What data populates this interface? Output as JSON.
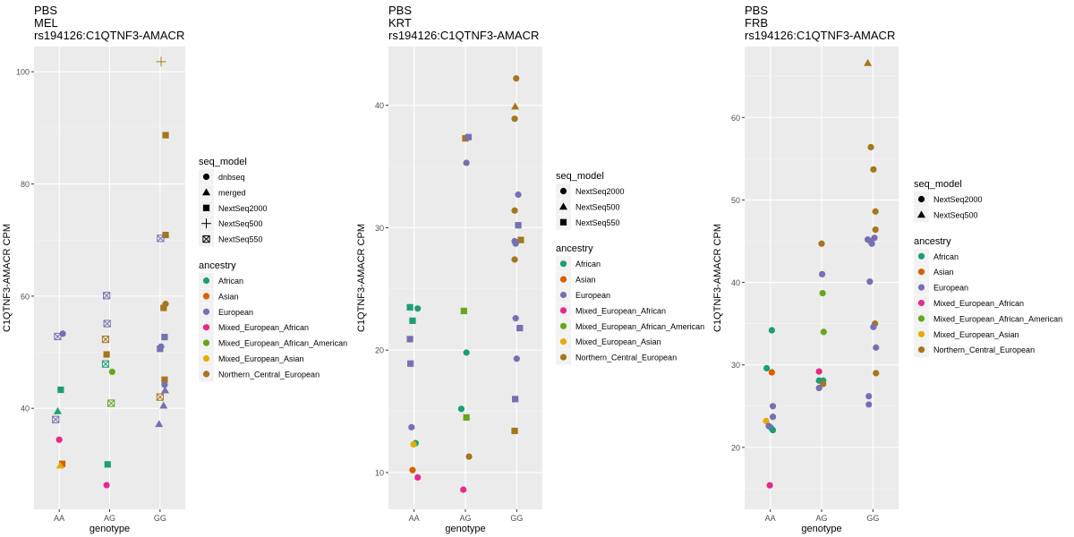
{
  "colors": {
    "African": "#1b9e77",
    "Asian": "#d95f02",
    "European": "#7570b3",
    "Mixed_European_African": "#e7298a",
    "Mixed_European_African_American": "#66a61e",
    "Mixed_European_Asian": "#e6ab02",
    "Northern_Central_European": "#a6761d",
    "panel_bg": "#ebebeb",
    "grid": "#ffffff"
  },
  "chart_data": [
    {
      "type": "scatter",
      "title": [
        "PBS",
        "MEL",
        "rs194126:C1QTNF3-AMACR"
      ],
      "xlabel": "genotype",
      "ylabel": "C1QTNF3-AMACR CPM",
      "categories": [
        "AA",
        "AG",
        "GG"
      ],
      "ylim": [
        22,
        104.5
      ],
      "yticks": [
        40,
        60,
        80,
        100
      ],
      "grid": true,
      "legend": {
        "shape_title": "seq_model",
        "shapes": [
          {
            "label": "dnbseq",
            "shape": "circle"
          },
          {
            "label": "merged",
            "shape": "triangle"
          },
          {
            "label": "NextSeq2000",
            "shape": "square"
          },
          {
            "label": "NextSeq500",
            "shape": "plus"
          },
          {
            "label": "NextSeq550",
            "shape": "boxx"
          }
        ],
        "color_title": "ancestry",
        "colors": [
          "African",
          "Asian",
          "European",
          "Mixed_European_African",
          "Mixed_European_African_American",
          "Mixed_European_Asian",
          "Northern_Central_European"
        ]
      },
      "points": [
        {
          "g": "AA",
          "j": 0.07,
          "y": 53.3,
          "a": "European",
          "s": "circle"
        },
        {
          "g": "AA",
          "j": -0.03,
          "y": 52.8,
          "a": "European",
          "s": "boxx"
        },
        {
          "g": "AA",
          "j": 0.03,
          "y": 43.3,
          "a": "African",
          "s": "square"
        },
        {
          "g": "AA",
          "j": -0.03,
          "y": 39.5,
          "a": "African",
          "s": "triangle"
        },
        {
          "g": "AA",
          "j": -0.07,
          "y": 38.0,
          "a": "European",
          "s": "boxx"
        },
        {
          "g": "AA",
          "j": 0.0,
          "y": 34.4,
          "a": "Mixed_European_African",
          "s": "circle"
        },
        {
          "g": "AA",
          "j": 0.06,
          "y": 30.1,
          "a": "Asian",
          "s": "square"
        },
        {
          "g": "AA",
          "j": 0.02,
          "y": 29.8,
          "a": "Mixed_European_Asian",
          "s": "triangle"
        },
        {
          "g": "AG",
          "j": -0.06,
          "y": 60.1,
          "a": "European",
          "s": "boxx"
        },
        {
          "g": "AG",
          "j": -0.05,
          "y": 55.1,
          "a": "European",
          "s": "boxx"
        },
        {
          "g": "AG",
          "j": -0.08,
          "y": 52.3,
          "a": "Northern_Central_European",
          "s": "boxx"
        },
        {
          "g": "AG",
          "j": -0.06,
          "y": 49.6,
          "a": "Northern_Central_European",
          "s": "square"
        },
        {
          "g": "AG",
          "j": -0.08,
          "y": 47.9,
          "a": "African",
          "s": "boxx"
        },
        {
          "g": "AG",
          "j": 0.05,
          "y": 46.5,
          "a": "Mixed_European_African_American",
          "s": "circle"
        },
        {
          "g": "AG",
          "j": 0.03,
          "y": 40.9,
          "a": "Mixed_European_African_American",
          "s": "boxx"
        },
        {
          "g": "AG",
          "j": -0.04,
          "y": 30.0,
          "a": "African",
          "s": "square"
        },
        {
          "g": "AG",
          "j": -0.06,
          "y": 26.3,
          "a": "Mixed_European_African",
          "s": "circle"
        },
        {
          "g": "GG",
          "j": 0.02,
          "y": 101.8,
          "a": "Northern_Central_European",
          "s": "plus"
        },
        {
          "g": "GG",
          "j": 0.11,
          "y": 88.7,
          "a": "Northern_Central_European",
          "s": "square"
        },
        {
          "g": "GG",
          "j": 0.11,
          "y": 70.9,
          "a": "Northern_Central_European",
          "s": "square"
        },
        {
          "g": "GG",
          "j": 0.01,
          "y": 70.3,
          "a": "European",
          "s": "boxx"
        },
        {
          "g": "GG",
          "j": 0.11,
          "y": 58.6,
          "a": "Northern_Central_European",
          "s": "circle"
        },
        {
          "g": "GG",
          "j": 0.07,
          "y": 57.9,
          "a": "Northern_Central_European",
          "s": "square"
        },
        {
          "g": "GG",
          "j": 0.09,
          "y": 52.7,
          "a": "European",
          "s": "square"
        },
        {
          "g": "GG",
          "j": 0.02,
          "y": 51.0,
          "a": "European",
          "s": "circle"
        },
        {
          "g": "GG",
          "j": 0.0,
          "y": 50.6,
          "a": "European",
          "s": "square"
        },
        {
          "g": "GG",
          "j": 0.09,
          "y": 45.1,
          "a": "Northern_Central_European",
          "s": "square"
        },
        {
          "g": "GG",
          "j": 0.09,
          "y": 44.2,
          "a": "European",
          "s": "circle"
        },
        {
          "g": "GG",
          "j": 0.1,
          "y": 43.2,
          "a": "European",
          "s": "triangle"
        },
        {
          "g": "GG",
          "j": 0.0,
          "y": 42.0,
          "a": "Northern_Central_European",
          "s": "boxx"
        },
        {
          "g": "GG",
          "j": 0.07,
          "y": 40.5,
          "a": "European",
          "s": "triangle"
        },
        {
          "g": "GG",
          "j": -0.02,
          "y": 37.2,
          "a": "European",
          "s": "triangle"
        }
      ]
    },
    {
      "type": "scatter",
      "title": [
        "PBS",
        "KRT",
        "rs194126:C1QTNF3-AMACR"
      ],
      "xlabel": "genotype",
      "ylabel": "C1QTNF3-AMACR CPM",
      "categories": [
        "AA",
        "AG",
        "GG"
      ],
      "ylim": [
        7,
        44.8
      ],
      "yticks": [
        10,
        20,
        30,
        40
      ],
      "grid": true,
      "legend": {
        "shape_title": "seq_model",
        "shapes": [
          {
            "label": "NextSeq2000",
            "shape": "circle"
          },
          {
            "label": "NextSeq500",
            "shape": "triangle"
          },
          {
            "label": "NextSeq550",
            "shape": "square"
          }
        ],
        "color_title": "ancestry",
        "colors": [
          "African",
          "Asian",
          "European",
          "Mixed_European_African",
          "Mixed_European_African_American",
          "Mixed_European_Asian",
          "Northern_Central_European"
        ]
      },
      "points": [
        {
          "g": "AA",
          "j": -0.08,
          "y": 23.5,
          "a": "African",
          "s": "square"
        },
        {
          "g": "AA",
          "j": 0.07,
          "y": 23.4,
          "a": "African",
          "s": "circle"
        },
        {
          "g": "AA",
          "j": -0.03,
          "y": 22.4,
          "a": "African",
          "s": "square"
        },
        {
          "g": "AA",
          "j": -0.08,
          "y": 20.9,
          "a": "European",
          "s": "square"
        },
        {
          "g": "AA",
          "j": -0.07,
          "y": 18.9,
          "a": "European",
          "s": "square"
        },
        {
          "g": "AA",
          "j": -0.05,
          "y": 13.7,
          "a": "European",
          "s": "circle"
        },
        {
          "g": "AA",
          "j": 0.03,
          "y": 12.4,
          "a": "African",
          "s": "circle"
        },
        {
          "g": "AA",
          "j": -0.01,
          "y": 12.3,
          "a": "Mixed_European_Asian",
          "s": "circle"
        },
        {
          "g": "AA",
          "j": -0.03,
          "y": 10.2,
          "a": "Asian",
          "s": "circle"
        },
        {
          "g": "AA",
          "j": 0.07,
          "y": 9.6,
          "a": "Mixed_European_African",
          "s": "circle"
        },
        {
          "g": "AG",
          "j": 0.0,
          "y": 37.3,
          "a": "Northern_Central_European",
          "s": "square"
        },
        {
          "g": "AG",
          "j": 0.06,
          "y": 37.4,
          "a": "European",
          "s": "square"
        },
        {
          "g": "AG",
          "j": 0.02,
          "y": 35.3,
          "a": "European",
          "s": "circle"
        },
        {
          "g": "AG",
          "j": -0.03,
          "y": 23.2,
          "a": "Mixed_European_African_American",
          "s": "square"
        },
        {
          "g": "AG",
          "j": 0.02,
          "y": 19.8,
          "a": "African",
          "s": "circle"
        },
        {
          "g": "AG",
          "j": -0.08,
          "y": 15.2,
          "a": "African",
          "s": "circle"
        },
        {
          "g": "AG",
          "j": 0.02,
          "y": 14.5,
          "a": "Mixed_European_African_American",
          "s": "square"
        },
        {
          "g": "AG",
          "j": 0.07,
          "y": 11.3,
          "a": "Northern_Central_European",
          "s": "circle"
        },
        {
          "g": "AG",
          "j": -0.04,
          "y": 8.6,
          "a": "Mixed_European_African",
          "s": "circle"
        },
        {
          "g": "GG",
          "j": -0.01,
          "y": 42.2,
          "a": "Northern_Central_European",
          "s": "circle"
        },
        {
          "g": "GG",
          "j": -0.03,
          "y": 39.9,
          "a": "Northern_Central_European",
          "s": "triangle"
        },
        {
          "g": "GG",
          "j": -0.04,
          "y": 38.9,
          "a": "Northern_Central_European",
          "s": "circle"
        },
        {
          "g": "GG",
          "j": 0.03,
          "y": 32.7,
          "a": "European",
          "s": "circle"
        },
        {
          "g": "GG",
          "j": -0.04,
          "y": 31.4,
          "a": "Northern_Central_European",
          "s": "circle"
        },
        {
          "g": "GG",
          "j": 0.03,
          "y": 30.2,
          "a": "European",
          "s": "square"
        },
        {
          "g": "GG",
          "j": 0.08,
          "y": 29.0,
          "a": "Northern_Central_European",
          "s": "square"
        },
        {
          "g": "GG",
          "j": -0.04,
          "y": 28.9,
          "a": "European",
          "s": "circle"
        },
        {
          "g": "GG",
          "j": -0.02,
          "y": 28.7,
          "a": "European",
          "s": "circle"
        },
        {
          "g": "GG",
          "j": -0.04,
          "y": 27.4,
          "a": "Northern_Central_European",
          "s": "circle"
        },
        {
          "g": "GG",
          "j": -0.02,
          "y": 22.6,
          "a": "European",
          "s": "circle"
        },
        {
          "g": "GG",
          "j": 0.06,
          "y": 21.8,
          "a": "European",
          "s": "square"
        },
        {
          "g": "GG",
          "j": 0.0,
          "y": 19.3,
          "a": "European",
          "s": "circle"
        },
        {
          "g": "GG",
          "j": -0.03,
          "y": 16.0,
          "a": "European",
          "s": "square"
        },
        {
          "g": "GG",
          "j": -0.04,
          "y": 13.4,
          "a": "Northern_Central_European",
          "s": "square"
        }
      ]
    },
    {
      "type": "scatter",
      "title": [
        "PBS",
        "FRB",
        "rs194126:C1QTNF3-AMACR"
      ],
      "xlabel": "genotype",
      "ylabel": "C1QTNF3-AMACR CPM",
      "categories": [
        "AA",
        "AG",
        "GG"
      ],
      "ylim": [
        12.5,
        68.6
      ],
      "yticks": [
        20,
        30,
        40,
        50,
        60
      ],
      "grid": true,
      "legend": {
        "shape_title": "seq_model",
        "shapes": [
          {
            "label": "NextSeq2000",
            "shape": "circle"
          },
          {
            "label": "NextSeq500",
            "shape": "triangle"
          }
        ],
        "color_title": "ancestry",
        "colors": [
          "African",
          "Asian",
          "European",
          "Mixed_European_African",
          "Mixed_European_African_American",
          "Mixed_European_Asian",
          "Northern_Central_European"
        ]
      },
      "points": [
        {
          "g": "AA",
          "j": 0.03,
          "y": 34.2,
          "a": "African",
          "s": "circle"
        },
        {
          "g": "AA",
          "j": -0.07,
          "y": 29.6,
          "a": "African",
          "s": "circle"
        },
        {
          "g": "AA",
          "j": 0.03,
          "y": 29.1,
          "a": "Asian",
          "s": "circle"
        },
        {
          "g": "AA",
          "j": 0.05,
          "y": 25.0,
          "a": "European",
          "s": "circle"
        },
        {
          "g": "AA",
          "j": 0.05,
          "y": 23.7,
          "a": "European",
          "s": "circle"
        },
        {
          "g": "AA",
          "j": -0.08,
          "y": 23.2,
          "a": "Mixed_European_Asian",
          "s": "circle"
        },
        {
          "g": "AA",
          "j": -0.03,
          "y": 22.6,
          "a": "European",
          "s": "circle"
        },
        {
          "g": "AA",
          "j": 0.01,
          "y": 22.4,
          "a": "European",
          "s": "circle"
        },
        {
          "g": "AA",
          "j": 0.05,
          "y": 22.1,
          "a": "African",
          "s": "circle"
        },
        {
          "g": "AA",
          "j": -0.01,
          "y": 15.4,
          "a": "Mixed_European_African",
          "s": "circle"
        },
        {
          "g": "AG",
          "j": 0.0,
          "y": 44.7,
          "a": "Northern_Central_European",
          "s": "circle"
        },
        {
          "g": "AG",
          "j": 0.01,
          "y": 41.0,
          "a": "European",
          "s": "circle"
        },
        {
          "g": "AG",
          "j": 0.02,
          "y": 38.7,
          "a": "Mixed_European_African_American",
          "s": "circle"
        },
        {
          "g": "AG",
          "j": 0.04,
          "y": 34.0,
          "a": "Mixed_European_African_American",
          "s": "circle"
        },
        {
          "g": "AG",
          "j": -0.05,
          "y": 29.2,
          "a": "Mixed_European_African",
          "s": "circle"
        },
        {
          "g": "AG",
          "j": -0.05,
          "y": 28.1,
          "a": "African",
          "s": "circle"
        },
        {
          "g": "AG",
          "j": 0.03,
          "y": 28.1,
          "a": "African",
          "s": "circle"
        },
        {
          "g": "AG",
          "j": 0.03,
          "y": 27.7,
          "a": "Northern_Central_European",
          "s": "circle"
        },
        {
          "g": "AG",
          "j": -0.05,
          "y": 27.2,
          "a": "European",
          "s": "circle"
        },
        {
          "g": "GG",
          "j": -0.1,
          "y": 66.6,
          "a": "Northern_Central_European",
          "s": "triangle"
        },
        {
          "g": "GG",
          "j": -0.04,
          "y": 56.4,
          "a": "Northern_Central_European",
          "s": "circle"
        },
        {
          "g": "GG",
          "j": 0.01,
          "y": 53.7,
          "a": "Northern_Central_European",
          "s": "circle"
        },
        {
          "g": "GG",
          "j": 0.05,
          "y": 48.6,
          "a": "Northern_Central_European",
          "s": "circle"
        },
        {
          "g": "GG",
          "j": 0.05,
          "y": 46.4,
          "a": "Northern_Central_European",
          "s": "circle"
        },
        {
          "g": "GG",
          "j": -0.1,
          "y": 45.2,
          "a": "European",
          "s": "circle"
        },
        {
          "g": "GG",
          "j": 0.03,
          "y": 45.4,
          "a": "European",
          "s": "circle"
        },
        {
          "g": "GG",
          "j": -0.05,
          "y": 45.0,
          "a": "European",
          "s": "circle"
        },
        {
          "g": "GG",
          "j": -0.02,
          "y": 44.7,
          "a": "European",
          "s": "circle"
        },
        {
          "g": "GG",
          "j": -0.06,
          "y": 40.1,
          "a": "European",
          "s": "circle"
        },
        {
          "g": "GG",
          "j": 0.04,
          "y": 35.0,
          "a": "Northern_Central_European",
          "s": "circle"
        },
        {
          "g": "GG",
          "j": 0.01,
          "y": 34.6,
          "a": "European",
          "s": "circle"
        },
        {
          "g": "GG",
          "j": 0.06,
          "y": 32.1,
          "a": "European",
          "s": "circle"
        },
        {
          "g": "GG",
          "j": 0.06,
          "y": 29.0,
          "a": "Northern_Central_European",
          "s": "circle"
        },
        {
          "g": "GG",
          "j": -0.08,
          "y": 26.2,
          "a": "European",
          "s": "circle"
        },
        {
          "g": "GG",
          "j": -0.08,
          "y": 25.2,
          "a": "European",
          "s": "circle"
        }
      ]
    }
  ]
}
